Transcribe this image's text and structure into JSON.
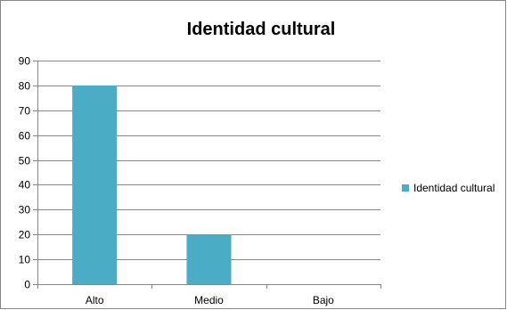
{
  "chart_data": {
    "type": "bar",
    "title": "Identidad cultural",
    "xlabel": "",
    "ylabel": "",
    "categories": [
      "Alto",
      "Medio",
      "Bajo"
    ],
    "series": [
      {
        "name": "Identidad cultural",
        "values": [
          80,
          20,
          0
        ],
        "color": "#4bacc6"
      }
    ],
    "ylim": [
      0,
      90
    ],
    "yticks": [
      "0",
      "10",
      "20",
      "30",
      "40",
      "50",
      "60",
      "70",
      "80",
      "90"
    ],
    "grid": true,
    "legend": "right"
  }
}
